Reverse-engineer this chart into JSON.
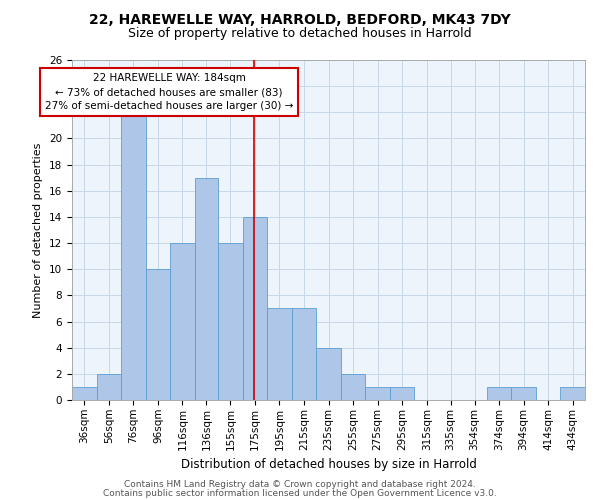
{
  "title1": "22, HAREWELLE WAY, HARROLD, BEDFORD, MK43 7DY",
  "title2": "Size of property relative to detached houses in Harrold",
  "xlabel": "Distribution of detached houses by size in Harrold",
  "ylabel": "Number of detached properties",
  "bin_labels": [
    "36sqm",
    "56sqm",
    "76sqm",
    "96sqm",
    "116sqm",
    "136sqm",
    "155sqm",
    "175sqm",
    "195sqm",
    "215sqm",
    "235sqm",
    "255sqm",
    "275sqm",
    "295sqm",
    "315sqm",
    "335sqm",
    "354sqm",
    "374sqm",
    "394sqm",
    "414sqm",
    "434sqm"
  ],
  "bin_edges": [
    36,
    56,
    76,
    96,
    116,
    136,
    155,
    175,
    195,
    215,
    235,
    255,
    275,
    295,
    315,
    335,
    354,
    374,
    394,
    414,
    434,
    454
  ],
  "values": [
    1,
    2,
    22,
    10,
    12,
    17,
    12,
    14,
    7,
    7,
    4,
    2,
    1,
    1,
    0,
    0,
    0,
    1,
    1,
    0,
    1
  ],
  "bar_color": "#aec6e8",
  "bar_edge_color": "#5a9fd4",
  "reference_line_x": 184,
  "reference_line_color": "#cc0000",
  "annotation_line1": "22 HAREWELLE WAY: 184sqm",
  "annotation_line2": "← 73% of detached houses are smaller (83)",
  "annotation_line3": "27% of semi-detached houses are larger (30) →",
  "annotation_box_color": "#ffffff",
  "annotation_box_edge_color": "#cc0000",
  "ylim": [
    0,
    26
  ],
  "yticks": [
    0,
    2,
    4,
    6,
    8,
    10,
    12,
    14,
    16,
    18,
    20,
    22,
    24,
    26
  ],
  "grid_color": "#c8d8e8",
  "background_color": "#eef4fb",
  "footer1": "Contains HM Land Registry data © Crown copyright and database right 2024.",
  "footer2": "Contains public sector information licensed under the Open Government Licence v3.0.",
  "title1_fontsize": 10,
  "title2_fontsize": 9,
  "xlabel_fontsize": 8.5,
  "ylabel_fontsize": 8,
  "tick_fontsize": 7.5,
  "annotation_fontsize": 7.5,
  "footer_fontsize": 6.5
}
